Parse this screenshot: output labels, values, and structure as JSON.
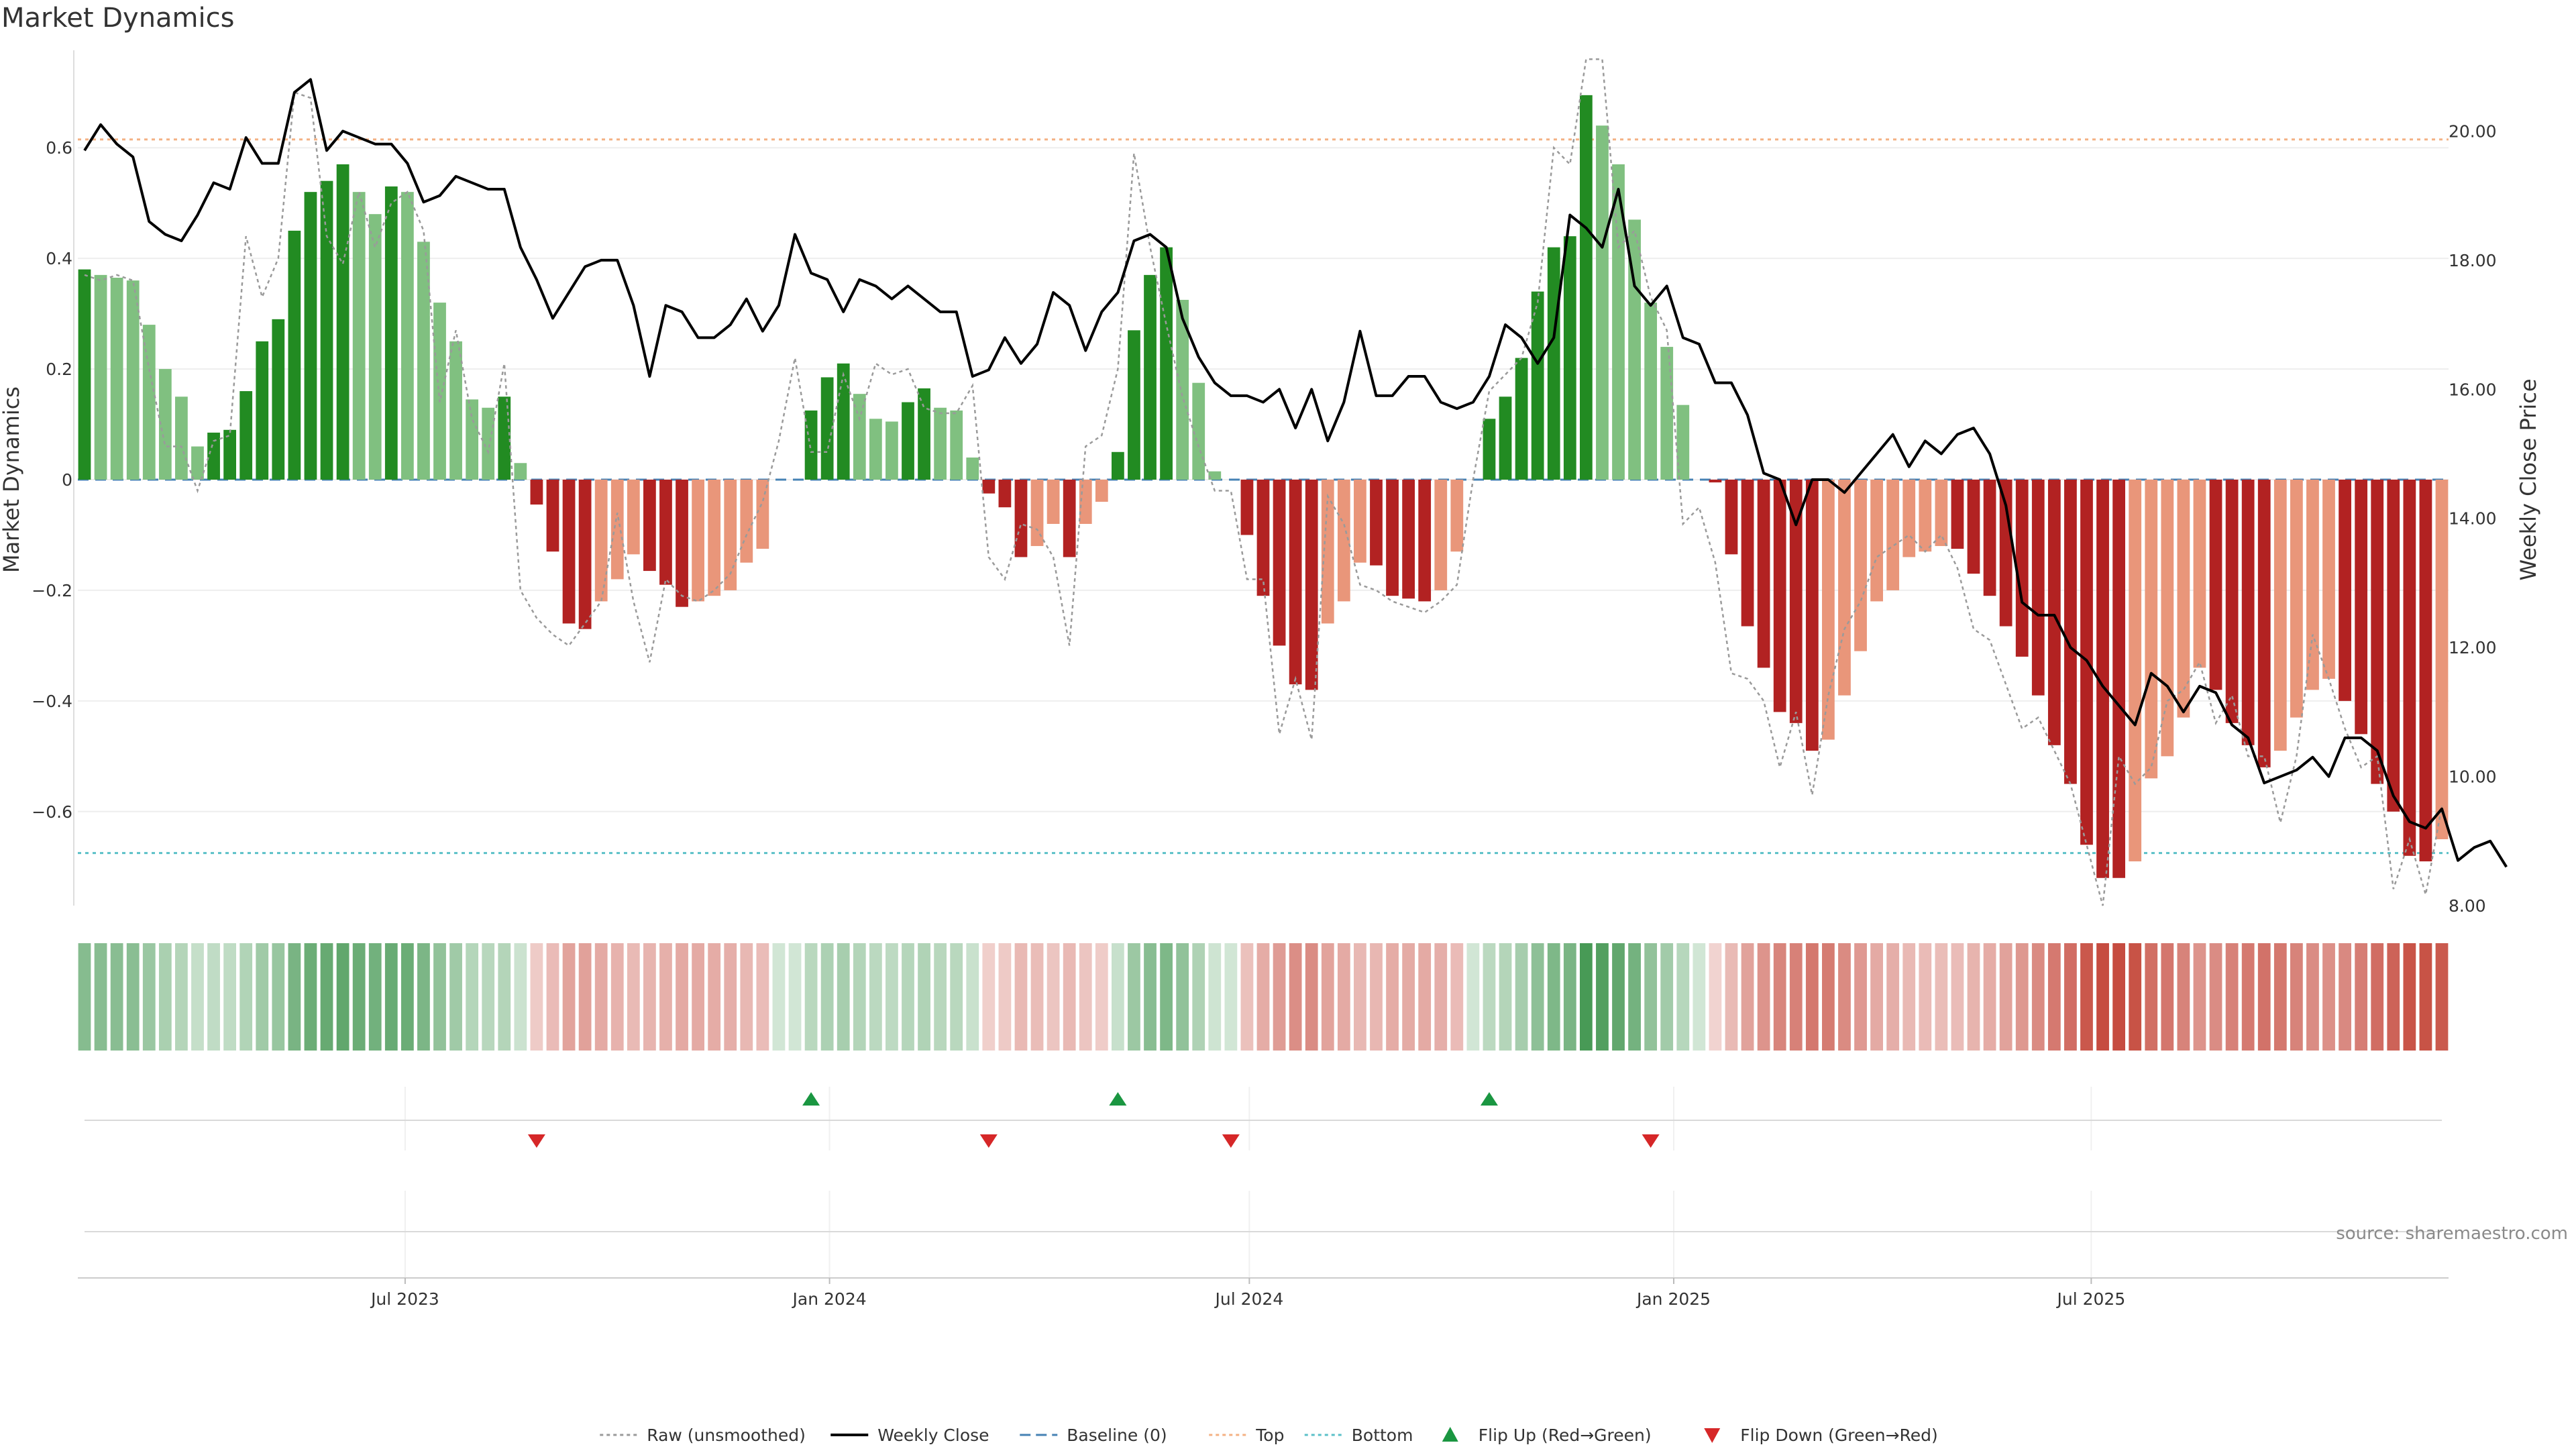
{
  "chart_data": {
    "type": "bar",
    "title": "Market Dynamics",
    "ylabel_left": "Market Dynamics",
    "ylabel_right": "Weekly Close Price",
    "source": "source: sharemaestro.com",
    "x_start": "2023-02-12",
    "week_step_days": 7,
    "ylim_left": [
      -0.77,
      0.77
    ],
    "yticks_left": [
      0.6,
      0.4,
      0.2,
      0,
      -0.2,
      -0.4,
      -0.6
    ],
    "yticks_left_labels": [
      "0.6",
      "0.4",
      "0.2",
      "0",
      "−0.2",
      "−0.4",
      "−0.6"
    ],
    "ylim_right": [
      8.0,
      21.2
    ],
    "yticks_right": [
      20,
      18,
      16,
      14,
      12,
      10,
      8
    ],
    "yticks_right_labels": [
      "20.00",
      "18.00",
      "16.00",
      "14.00",
      "12.00",
      "10.00",
      "8.00"
    ],
    "x_ticks": [
      {
        "label": "Jul 2023",
        "date": "2023-07-01"
      },
      {
        "label": "Jan 2024",
        "date": "2024-01-01"
      },
      {
        "label": "Jul 2024",
        "date": "2024-07-01"
      },
      {
        "label": "Jan 2025",
        "date": "2025-01-01"
      },
      {
        "label": "Jul 2025",
        "date": "2025-07-01"
      }
    ],
    "top_level": 0.615,
    "bottom_level": -0.675,
    "baseline": 0,
    "colors": {
      "pos_strong": "#228b22",
      "pos_light": "#80c080",
      "neg_strong": "#b22222",
      "neg_light": "#e9967a",
      "raw": "#9a9a9a",
      "close": "#000000",
      "baseline": "#4682b4",
      "top": "#f4b183",
      "bottom": "#5bc0c8",
      "flip_up": "#1a9641",
      "flip_down": "#d62728",
      "heat_pos": "#2e8b3e",
      "heat_neg": "#c0392b"
    },
    "series": [
      {
        "name": "Market Dynamics (smoothed)",
        "type": "bar",
        "values": [
          0.38,
          0.37,
          0.365,
          0.36,
          0.28,
          0.2,
          0.15,
          0.06,
          0.085,
          0.09,
          0.16,
          0.25,
          0.29,
          0.45,
          0.52,
          0.54,
          0.57,
          0.52,
          0.48,
          0.53,
          0.52,
          0.43,
          0.32,
          0.25,
          0.145,
          0.13,
          0.15,
          0.03,
          -0.045,
          -0.13,
          -0.26,
          -0.27,
          -0.22,
          -0.18,
          -0.135,
          -0.165,
          -0.19,
          -0.23,
          -0.22,
          -0.21,
          -0.2,
          -0.15,
          -0.125,
          0.0,
          0.0,
          0.125,
          0.185,
          0.21,
          0.155,
          0.11,
          0.105,
          0.14,
          0.165,
          0.13,
          0.125,
          0.04,
          -0.025,
          -0.05,
          -0.14,
          -0.12,
          -0.08,
          -0.14,
          -0.08,
          -0.04,
          0.05,
          0.27,
          0.37,
          0.42,
          0.325,
          0.175,
          0.015,
          0.0,
          -0.1,
          -0.21,
          -0.3,
          -0.37,
          -0.38,
          -0.26,
          -0.22,
          -0.15,
          -0.155,
          -0.21,
          -0.215,
          -0.22,
          -0.2,
          -0.13,
          0.0,
          0.11,
          0.15,
          0.22,
          0.34,
          0.42,
          0.44,
          0.695,
          0.64,
          0.57,
          0.47,
          0.32,
          0.24,
          0.135,
          0.0,
          -0.005,
          -0.135,
          -0.265,
          -0.34,
          -0.42,
          -0.44,
          -0.49,
          -0.47,
          -0.39,
          -0.31,
          -0.22,
          -0.2,
          -0.14,
          -0.13,
          -0.12,
          -0.125,
          -0.17,
          -0.21,
          -0.265,
          -0.32,
          -0.39,
          -0.48,
          -0.55,
          -0.66,
          -0.72,
          -0.72,
          -0.69,
          -0.54,
          -0.5,
          -0.43,
          -0.34,
          -0.38,
          -0.44,
          -0.48,
          -0.52,
          -0.49,
          -0.43,
          -0.38,
          -0.36,
          -0.4,
          -0.46,
          -0.55,
          -0.6,
          -0.68,
          -0.69,
          -0.65
        ]
      },
      {
        "name": "Raw (unsmoothed)",
        "type": "line",
        "values": [
          0.37,
          0.36,
          0.37,
          0.36,
          0.2,
          0.06,
          0.06,
          -0.02,
          0.07,
          0.08,
          0.44,
          0.33,
          0.4,
          0.7,
          0.69,
          0.44,
          0.39,
          0.52,
          0.42,
          0.5,
          0.52,
          0.45,
          0.14,
          0.27,
          0.11,
          0.05,
          0.21,
          -0.2,
          -0.25,
          -0.28,
          -0.3,
          -0.26,
          -0.22,
          -0.06,
          -0.22,
          -0.33,
          -0.18,
          -0.21,
          -0.22,
          -0.2,
          -0.17,
          -0.1,
          -0.04,
          0.07,
          0.22,
          0.05,
          0.05,
          0.19,
          0.11,
          0.21,
          0.19,
          0.2,
          0.13,
          0.12,
          0.12,
          0.17,
          -0.14,
          -0.18,
          -0.08,
          -0.09,
          -0.14,
          -0.3,
          0.06,
          0.08,
          0.2,
          0.59,
          0.42,
          0.28,
          0.15,
          0.06,
          -0.02,
          -0.02,
          -0.18,
          -0.18,
          -0.46,
          -0.36,
          -0.47,
          -0.03,
          -0.08,
          -0.19,
          -0.2,
          -0.22,
          -0.23,
          -0.24,
          -0.22,
          -0.19,
          0.0,
          0.16,
          0.19,
          0.22,
          0.32,
          0.6,
          0.57,
          0.76,
          0.76,
          0.42,
          0.45,
          0.33,
          0.27,
          -0.08,
          -0.05,
          -0.15,
          -0.35,
          -0.36,
          -0.4,
          -0.52,
          -0.42,
          -0.57,
          -0.39,
          -0.27,
          -0.22,
          -0.14,
          -0.12,
          -0.1,
          -0.13,
          -0.1,
          -0.16,
          -0.27,
          -0.29,
          -0.37,
          -0.45,
          -0.43,
          -0.49,
          -0.55,
          -0.66,
          -0.77,
          -0.5,
          -0.55,
          -0.52,
          -0.4,
          -0.38,
          -0.33,
          -0.44,
          -0.39,
          -0.5,
          -0.5,
          -0.62,
          -0.5,
          -0.28,
          -0.36,
          -0.45,
          -0.52,
          -0.5,
          -0.74,
          -0.65,
          -0.75,
          -0.59
        ]
      },
      {
        "name": "Weekly Close",
        "type": "line",
        "axis": "right",
        "values": [
          19.7,
          20.1,
          19.8,
          19.6,
          18.6,
          18.4,
          18.3,
          18.7,
          19.2,
          19.1,
          19.9,
          19.5,
          19.5,
          20.6,
          20.8,
          19.7,
          20.0,
          19.9,
          19.8,
          19.8,
          19.5,
          18.9,
          19.0,
          19.3,
          19.2,
          19.1,
          19.1,
          18.2,
          17.7,
          17.1,
          17.5,
          17.9,
          18.0,
          18.0,
          17.3,
          16.2,
          17.3,
          17.2,
          16.8,
          16.8,
          17.0,
          17.4,
          16.9,
          17.3,
          18.4,
          17.8,
          17.7,
          17.2,
          17.7,
          17.6,
          17.4,
          17.6,
          17.4,
          17.2,
          17.2,
          16.2,
          16.3,
          16.8,
          16.4,
          16.7,
          17.5,
          17.3,
          16.6,
          17.2,
          17.5,
          18.3,
          18.4,
          18.2,
          17.1,
          16.5,
          16.1,
          15.9,
          15.9,
          15.8,
          16.0,
          15.4,
          16.0,
          15.2,
          15.8,
          16.9,
          15.9,
          15.9,
          16.2,
          16.2,
          15.8,
          15.7,
          15.8,
          16.2,
          17.0,
          16.8,
          16.4,
          16.8,
          18.7,
          18.5,
          18.2,
          19.1,
          17.6,
          17.3,
          17.6,
          16.8,
          16.7,
          16.1,
          16.1,
          15.6,
          14.7,
          14.6,
          13.9,
          14.6,
          14.6,
          14.4,
          14.7,
          15.0,
          15.3,
          14.8,
          15.2,
          15.0,
          15.3,
          15.4,
          15.0,
          14.2,
          12.7,
          12.5,
          12.5,
          12.0,
          11.8,
          11.4,
          11.1,
          10.8,
          11.6,
          11.4,
          11.0,
          11.4,
          11.3,
          10.8,
          10.6,
          9.9,
          10.0,
          10.1,
          10.3,
          10.0,
          10.6,
          10.6,
          10.4,
          9.7,
          9.3,
          9.2,
          9.5,
          8.7,
          8.9,
          9.0,
          8.6
        ]
      }
    ],
    "flips": [
      {
        "type": "up",
        "date": "2023-12-24"
      },
      {
        "type": "up",
        "date": "2024-05-05"
      },
      {
        "type": "up",
        "date": "2024-10-13"
      },
      {
        "type": "down",
        "date": "2023-08-27"
      },
      {
        "type": "down",
        "date": "2024-03-10"
      },
      {
        "type": "down",
        "date": "2024-06-23"
      },
      {
        "type": "down",
        "date": "2024-12-22"
      }
    ],
    "legend": [
      {
        "label": "Raw (unsmoothed)",
        "symbol": "dotted-line",
        "color": "#9a9a9a"
      },
      {
        "label": "Weekly Close",
        "symbol": "solid-line",
        "color": "#000000"
      },
      {
        "label": "Baseline (0)",
        "symbol": "dashed-line",
        "color": "#4682b4"
      },
      {
        "label": "Top",
        "symbol": "dotted-line",
        "color": "#f4b183"
      },
      {
        "label": "Bottom",
        "symbol": "dotted-line",
        "color": "#5bc0c8"
      },
      {
        "label": "Flip Up (Red→Green)",
        "symbol": "triangle-up",
        "color": "#1a9641"
      },
      {
        "label": "Flip Down (Green→Red)",
        "symbol": "triangle-down",
        "color": "#d62728"
      }
    ],
    "legend_position": "bottom-center",
    "grid": true
  }
}
